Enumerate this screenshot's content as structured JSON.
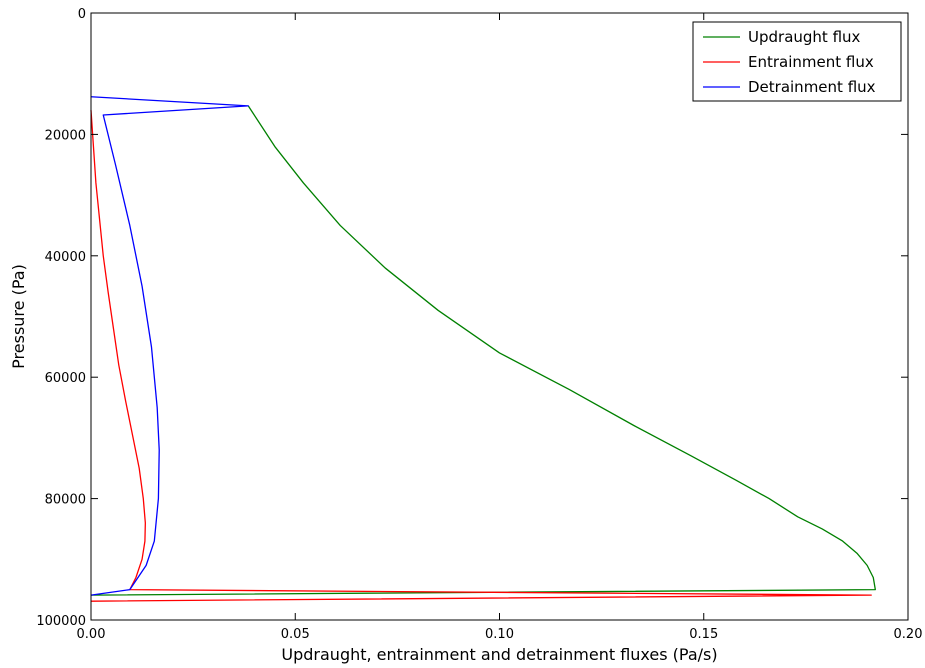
{
  "chart_data": {
    "type": "line",
    "title": "",
    "xlabel": "Updraught, entrainment and detrainment fluxes (Pa/s)",
    "ylabel": "Pressure (Pa)",
    "xlim": [
      0.0,
      0.2
    ],
    "ylim": [
      100000,
      0
    ],
    "y_inverted": true,
    "x_ticks": [
      0.0,
      0.05,
      0.1,
      0.15,
      0.2
    ],
    "x_tick_labels": [
      "0.00",
      "0.05",
      "0.10",
      "0.15",
      "0.20"
    ],
    "y_ticks": [
      0,
      20000,
      40000,
      60000,
      80000,
      100000
    ],
    "y_tick_labels": [
      "0",
      "20000",
      "40000",
      "60000",
      "80000",
      "100000"
    ],
    "grid": false,
    "legend_position": "top-right",
    "series": [
      {
        "name": "Updraught flux",
        "color": "#008000",
        "points": [
          [
            0.0,
            95900
          ],
          [
            0.192,
            95000
          ],
          [
            0.1915,
            93000
          ],
          [
            0.19,
            91000
          ],
          [
            0.1875,
            89000
          ],
          [
            0.184,
            87000
          ],
          [
            0.179,
            85000
          ],
          [
            0.173,
            83000
          ],
          [
            0.166,
            80000
          ],
          [
            0.158,
            77000
          ],
          [
            0.147,
            73000
          ],
          [
            0.133,
            68000
          ],
          [
            0.117,
            62000
          ],
          [
            0.1,
            56000
          ],
          [
            0.085,
            49000
          ],
          [
            0.072,
            42000
          ],
          [
            0.061,
            35000
          ],
          [
            0.052,
            28000
          ],
          [
            0.045,
            22000
          ],
          [
            0.0385,
            15300
          ]
        ]
      },
      {
        "name": "Entrainment flux",
        "color": "#ff0000",
        "points": [
          [
            0.0,
            96900
          ],
          [
            0.191,
            95900
          ],
          [
            0.0095,
            95000
          ],
          [
            0.011,
            93000
          ],
          [
            0.0125,
            90000
          ],
          [
            0.0132,
            87000
          ],
          [
            0.0133,
            84000
          ],
          [
            0.0128,
            80000
          ],
          [
            0.0118,
            75000
          ],
          [
            0.0103,
            70000
          ],
          [
            0.0085,
            64000
          ],
          [
            0.0068,
            58000
          ],
          [
            0.0055,
            52000
          ],
          [
            0.0042,
            46000
          ],
          [
            0.003,
            40000
          ],
          [
            0.0021,
            34000
          ],
          [
            0.0012,
            28000
          ],
          [
            0.0006,
            22000
          ],
          [
            0.0002,
            18000
          ],
          [
            0.0,
            16000
          ]
        ]
      },
      {
        "name": "Detrainment flux",
        "color": "#0000ff",
        "points": [
          [
            0.0,
            13800
          ],
          [
            0.0385,
            15300
          ],
          [
            0.003,
            16800
          ],
          [
            0.006,
            25000
          ],
          [
            0.0095,
            35000
          ],
          [
            0.0125,
            45000
          ],
          [
            0.0148,
            55000
          ],
          [
            0.0162,
            65000
          ],
          [
            0.0167,
            72000
          ],
          [
            0.0165,
            80000
          ],
          [
            0.0155,
            87000
          ],
          [
            0.0135,
            91000
          ],
          [
            0.0095,
            95000
          ],
          [
            0.0,
            95900
          ]
        ]
      }
    ]
  }
}
